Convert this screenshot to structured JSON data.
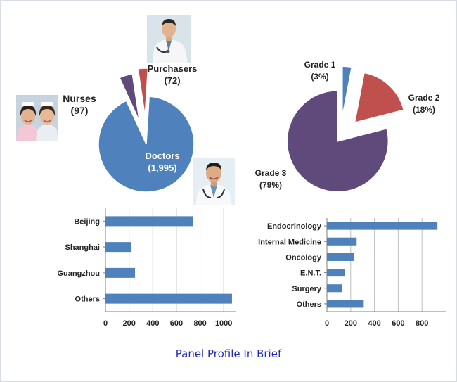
{
  "caption": "Panel Profile In Brief",
  "colors": {
    "blue": "#4f81bd",
    "red": "#c0504d",
    "purple": "#604a7b",
    "text": "#222222",
    "grid": "#bfbfbf",
    "caption": "#1f2bb5"
  },
  "photos": [
    {
      "name": "purchaser-photo",
      "depicts": "doctor in white coat with stethoscope"
    },
    {
      "name": "nurses-photo",
      "depicts": "two smiling nurses"
    },
    {
      "name": "doctor-photo",
      "depicts": "smiling doctor with stethoscope"
    }
  ],
  "chart_data": [
    {
      "type": "pie",
      "categories": [
        "Doctors",
        "Nurses",
        "Purchasers"
      ],
      "values": [
        1995,
        97,
        72
      ],
      "labels": [
        "Doctors\n(1,995)",
        "Nurses\n(97)",
        "Purchasers\n(72)"
      ],
      "colors": [
        "#4f81bd",
        "#604a7b",
        "#c0504d"
      ],
      "exploded": true,
      "title": ""
    },
    {
      "type": "pie",
      "categories": [
        "Grade 1",
        "Grade 2",
        "Grade 3"
      ],
      "values": [
        3,
        18,
        79
      ],
      "labels": [
        "Grade 1\n(3%)",
        "Grade 2\n(18%)",
        "Grade 3\n(79%)"
      ],
      "colors": [
        "#4f81bd",
        "#c0504d",
        "#604a7b"
      ],
      "exploded": true,
      "title": ""
    },
    {
      "type": "bar",
      "orientation": "horizontal",
      "categories": [
        "Beijing",
        "Shanghai",
        "Guangzhou",
        "Others"
      ],
      "values": [
        740,
        220,
        250,
        1070
      ],
      "xlim": [
        0,
        1100
      ],
      "xticks": [
        0,
        200,
        400,
        600,
        800,
        1000
      ],
      "grid": true,
      "color": "#4f81bd",
      "title": "",
      "xlabel": "",
      "ylabel": ""
    },
    {
      "type": "bar",
      "orientation": "horizontal",
      "categories": [
        "Endocrinology",
        "Internal Medicine",
        "Oncology",
        "E.N.T.",
        "Surgery",
        "Others"
      ],
      "values": [
        930,
        250,
        230,
        150,
        130,
        310
      ],
      "xlim": [
        0,
        1000
      ],
      "xticks": [
        0,
        200,
        400,
        600,
        800
      ],
      "grid": true,
      "color": "#4f81bd",
      "title": "",
      "xlabel": "",
      "ylabel": ""
    }
  ]
}
